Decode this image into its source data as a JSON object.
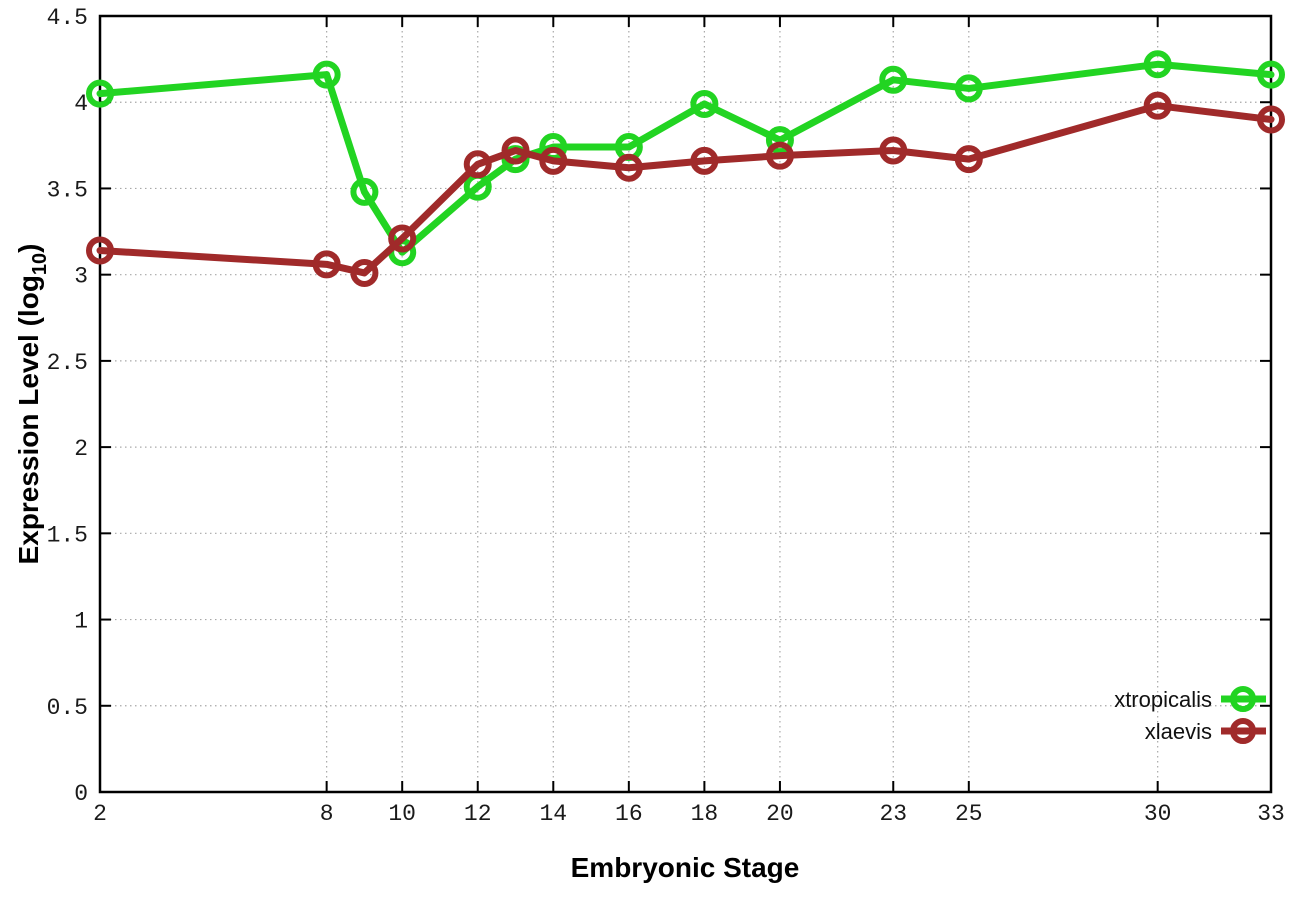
{
  "chart_data": {
    "type": "line",
    "x": [
      2,
      8,
      9,
      10,
      12,
      13,
      14,
      16,
      18,
      20,
      23,
      25,
      30,
      33
    ],
    "series": [
      {
        "name": "xtropicalis",
        "color": "#22d422",
        "values": [
          4.05,
          4.16,
          3.48,
          3.13,
          3.51,
          3.67,
          3.74,
          3.74,
          3.99,
          3.78,
          4.13,
          4.08,
          4.22,
          4.16
        ]
      },
      {
        "name": "xlaevis",
        "color": "#a02a2a",
        "values": [
          3.14,
          3.06,
          3.01,
          3.21,
          3.64,
          3.72,
          3.66,
          3.62,
          3.66,
          3.69,
          3.72,
          3.67,
          3.98,
          3.9
        ]
      }
    ],
    "title": "",
    "xlabel": "Embryonic Stage",
    "ylabel": "Expression Level (log10)",
    "xlim": [
      2,
      33
    ],
    "ylim": [
      0,
      4.5
    ],
    "x_ticks": [
      2,
      8,
      10,
      12,
      14,
      16,
      18,
      20,
      23,
      25,
      30,
      33
    ],
    "y_ticks": [
      0,
      0.5,
      1,
      1.5,
      2,
      2.5,
      3,
      3.5,
      4,
      4.5
    ],
    "grid": true,
    "grid_style": "dotted",
    "legend_position": "bottom-right-inside",
    "marker": "open-circle",
    "axis_color": "#000000",
    "grid_color": "#a8a8a8"
  },
  "labels": {
    "xlabel": "Embryonic Stage",
    "ylabel_main": "Expression Level (log",
    "ylabel_sub": "10",
    "ylabel_close": ")"
  }
}
